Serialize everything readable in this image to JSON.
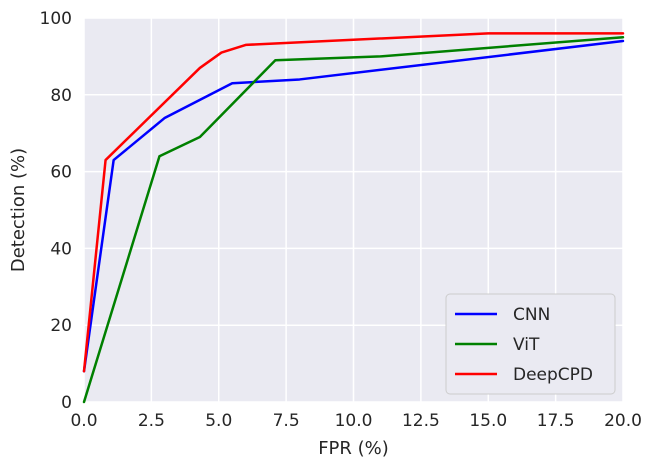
{
  "chart_data": {
    "type": "line",
    "xlabel": "FPR (%)",
    "ylabel": "Detection (%)",
    "xlim": [
      0,
      20
    ],
    "ylim": [
      0,
      100
    ],
    "x_ticks": [
      "0.0",
      "2.5",
      "5.0",
      "7.5",
      "10.0",
      "12.5",
      "15.0",
      "17.5",
      "20.0"
    ],
    "y_ticks": [
      "0",
      "20",
      "40",
      "60",
      "80",
      "100"
    ],
    "grid": true,
    "legend_position": "lower-right",
    "series": [
      {
        "name": "CNN",
        "color": "#0000ff",
        "points": [
          [
            0,
            8
          ],
          [
            1.1,
            63
          ],
          [
            3,
            74
          ],
          [
            5.5,
            83
          ],
          [
            8,
            84
          ],
          [
            20,
            94
          ]
        ]
      },
      {
        "name": "ViT",
        "color": "#008000",
        "points": [
          [
            0,
            0
          ],
          [
            2.8,
            64
          ],
          [
            4.3,
            69
          ],
          [
            7.1,
            89
          ],
          [
            11,
            90
          ],
          [
            20,
            95
          ]
        ]
      },
      {
        "name": "DeepCPD",
        "color": "#ff0000",
        "points": [
          [
            0,
            8
          ],
          [
            0.8,
            63
          ],
          [
            4.3,
            87
          ],
          [
            5.1,
            91
          ],
          [
            6,
            93
          ],
          [
            15,
            96
          ],
          [
            20,
            96
          ]
        ]
      }
    ]
  }
}
